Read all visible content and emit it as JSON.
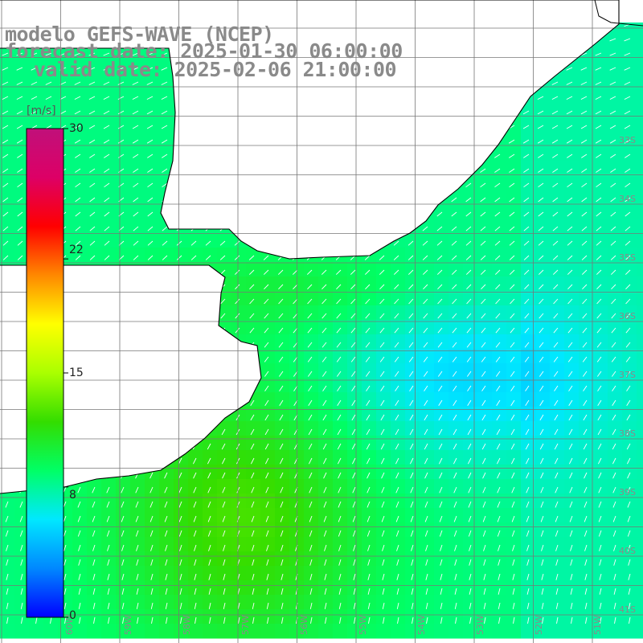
{
  "title": {
    "line1": "modelo GEFS-WAVE (NCEP)",
    "line2": "forecast date: 2025-01-30 06:00:00",
    "line3": "valid date: 2025-02-06 21:00:00"
  },
  "colorbar": {
    "unit": "[m/s]",
    "ticks": [
      {
        "label": "30",
        "value": 30
      },
      {
        "label": "22",
        "value": 22
      },
      {
        "label": "15",
        "value": 15
      },
      {
        "label": "8",
        "value": 8
      },
      {
        "label": "0",
        "value": 0
      }
    ],
    "min": 0,
    "max": 30,
    "colors": [
      "#0000ff",
      "#0088ff",
      "#00e8ff",
      "#00ff66",
      "#33dd00",
      "#aaff00",
      "#ffff00",
      "#ff8800",
      "#ff0000",
      "#dd0066",
      "#c0107a"
    ]
  },
  "map": {
    "lat_labels": [
      "33S",
      "34S",
      "35S",
      "36S",
      "37S",
      "38S",
      "39S",
      "40S",
      "41S"
    ],
    "lon_labels": [
      "60W",
      "59W",
      "58W",
      "57W",
      "56W",
      "55W",
      "54W",
      "53W",
      "52W",
      "51W"
    ],
    "land_color": "#ffffff",
    "grid_color": "#777777",
    "coast_color": "#000000",
    "arrow_color": "#ffffff",
    "field": {
      "description_of_visible_state": "wind speed field mostly 6–13 m/s, arrows pointing toward southwest/south",
      "dominant_direction": "southwest"
    }
  }
}
